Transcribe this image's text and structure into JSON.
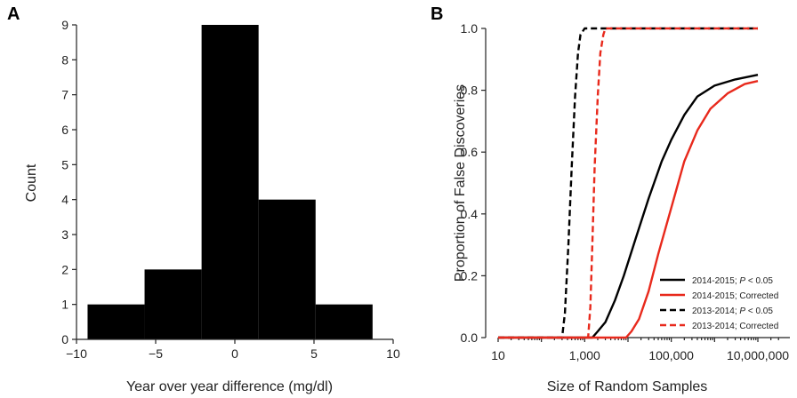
{
  "chart_data": [
    {
      "panel": "A",
      "type": "bar",
      "subtype": "histogram",
      "bins": [
        {
          "x0": -9.3,
          "x1": -5.7,
          "count": 1
        },
        {
          "x0": -5.7,
          "x1": -2.1,
          "count": 2
        },
        {
          "x0": -2.1,
          "x1": 1.5,
          "count": 9
        },
        {
          "x0": 1.5,
          "x1": 5.1,
          "count": 4
        },
        {
          "x0": 5.1,
          "x1": 8.7,
          "count": 1
        }
      ],
      "color": "#000000",
      "xlabel": "Year over year difference (mg/dl)",
      "ylabel": "Count",
      "xlim": [
        -10,
        10
      ],
      "ylim": [
        0,
        9
      ],
      "xticks": [
        -10,
        -5,
        0,
        5,
        10
      ],
      "xtick_labels": [
        "−10",
        "−5",
        "0",
        "5",
        "10"
      ],
      "yticks": [
        0,
        1,
        2,
        3,
        4,
        5,
        6,
        7,
        8,
        9
      ],
      "ytick_labels": [
        "0",
        "1",
        "2",
        "3",
        "4",
        "5",
        "6",
        "7",
        "8",
        "9"
      ],
      "grid": false
    },
    {
      "panel": "B",
      "type": "line",
      "xscale": "log",
      "xlabel": "Size of Random Samples",
      "ylabel": "Proportion of False Discoveries",
      "xlim": [
        10,
        10000000
      ],
      "ylim": [
        0,
        1.0
      ],
      "xticks": [
        10,
        1000,
        100000,
        10000000
      ],
      "xtick_labels": [
        "10",
        "1,000",
        "100,000",
        "10,000,000"
      ],
      "yticks": [
        0,
        0.2,
        0.4,
        0.6,
        0.8,
        1.0
      ],
      "ytick_labels": [
        "0.0",
        "0.2",
        "0.4",
        "0.6",
        "0.8",
        "1.0"
      ],
      "grid": false,
      "legend_position": "bottom-right",
      "series": [
        {
          "name": "2014-2015; P < 0.05",
          "label_prefix": "2014-2015; ",
          "label_italic": "P",
          "label_suffix": " < 0.05",
          "color": "#000000",
          "dash": "solid",
          "x": [
            10,
            1500,
            2000,
            3000,
            5000,
            8000,
            15000,
            30000,
            60000,
            100000,
            200000,
            400000,
            1000000,
            3000000,
            10000000
          ],
          "y": [
            0,
            0,
            0.02,
            0.05,
            0.12,
            0.2,
            0.32,
            0.45,
            0.57,
            0.64,
            0.72,
            0.78,
            0.815,
            0.835,
            0.85
          ]
        },
        {
          "name": "2014-2015; Corrected",
          "label_prefix": "2014-2015; Corrected",
          "label_italic": "",
          "label_suffix": "",
          "color": "#e8291c",
          "dash": "solid",
          "x": [
            10,
            9000,
            12000,
            18000,
            30000,
            50000,
            100000,
            200000,
            400000,
            800000,
            2000000,
            5000000,
            10000000
          ],
          "y": [
            0,
            0,
            0.02,
            0.06,
            0.15,
            0.27,
            0.42,
            0.57,
            0.67,
            0.74,
            0.79,
            0.82,
            0.83
          ]
        },
        {
          "name": "2013-2014; P < 0.05",
          "label_prefix": "2013-2014; ",
          "label_italic": "P",
          "label_suffix": " < 0.05",
          "color": "#000000",
          "dash": "dashed",
          "x": [
            10,
            300,
            350,
            420,
            500,
            600,
            700,
            800,
            1000,
            10000000
          ],
          "y": [
            0,
            0,
            0.08,
            0.3,
            0.55,
            0.78,
            0.92,
            0.98,
            1.0,
            1.0
          ]
        },
        {
          "name": "2013-2014; Corrected",
          "label_prefix": "2013-2014; Corrected",
          "label_italic": "",
          "label_suffix": "",
          "color": "#e8291c",
          "dash": "dashed",
          "x": [
            10,
            1200,
            1350,
            1500,
            1700,
            2000,
            2300,
            2700,
            3000,
            10000000
          ],
          "y": [
            0,
            0,
            0.1,
            0.3,
            0.55,
            0.78,
            0.92,
            0.98,
            1.0,
            1.0
          ]
        }
      ]
    }
  ]
}
